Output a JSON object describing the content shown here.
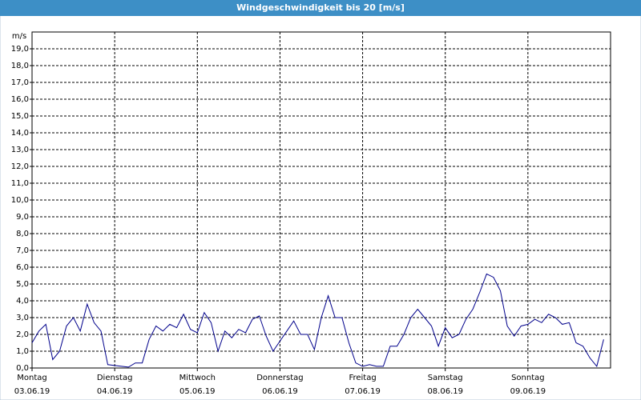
{
  "chart_data": {
    "type": "line",
    "title": "Windgeschwindigkeit bis 20 [m/s]",
    "y_label": "m/s",
    "x": [
      0,
      2,
      4,
      6,
      8,
      10,
      12,
      14,
      16,
      18,
      20,
      22,
      24,
      26,
      28,
      30,
      32,
      34,
      36,
      38,
      40,
      42,
      44,
      46,
      48,
      50,
      52,
      54,
      56,
      58,
      60,
      62,
      64,
      66,
      68,
      70,
      72,
      74,
      76,
      78,
      80,
      82,
      84,
      86,
      88,
      90,
      92,
      94,
      96,
      98,
      100,
      102,
      104,
      106,
      108,
      110,
      112,
      114,
      116,
      118,
      120,
      122,
      124,
      126,
      128,
      130,
      132,
      134,
      136,
      138,
      140,
      142,
      144,
      146,
      148,
      150,
      152,
      154,
      156,
      158,
      160,
      162,
      164,
      166
    ],
    "series": [
      {
        "name": "Windgeschwindigkeit",
        "color": "#00008b",
        "values": [
          1.5,
          2.2,
          2.6,
          0.5,
          1.0,
          2.5,
          3.0,
          2.2,
          3.8,
          2.7,
          2.2,
          0.2,
          0.15,
          0.1,
          0.05,
          0.3,
          0.3,
          1.7,
          2.5,
          2.2,
          2.6,
          2.4,
          3.2,
          2.3,
          2.1,
          3.3,
          2.7,
          1.0,
          2.2,
          1.8,
          2.3,
          2.1,
          2.9,
          3.1,
          1.9,
          1.0,
          1.6,
          2.2,
          2.8,
          2.0,
          2.0,
          1.1,
          3.0,
          4.3,
          3.0,
          3.0,
          1.5,
          0.3,
          0.1,
          0.2,
          0.1,
          0.1,
          1.3,
          1.3,
          2.0,
          3.0,
          3.5,
          3.0,
          2.5,
          1.3,
          2.4,
          1.8,
          2.0,
          2.9,
          3.5,
          4.5,
          5.6,
          5.4,
          4.6,
          2.5,
          1.9,
          2.5,
          2.6,
          2.9,
          2.7,
          3.2,
          3.0,
          2.6,
          2.7,
          1.5,
          1.3,
          0.6,
          0.1,
          1.7
        ]
      }
    ],
    "xlim": [
      0,
      168
    ],
    "xticks": [
      {
        "value": 0,
        "label": "Montag",
        "date": "03.06.19"
      },
      {
        "value": 24,
        "label": "Dienstag",
        "date": "04.06.19"
      },
      {
        "value": 48,
        "label": "Mittwoch",
        "date": "05.06.19"
      },
      {
        "value": 72,
        "label": "Donnerstag",
        "date": "06.06.19"
      },
      {
        "value": 96,
        "label": "Freitag",
        "date": "07.06.19"
      },
      {
        "value": 120,
        "label": "Samstag",
        "date": "08.06.19"
      },
      {
        "value": 144,
        "label": "Sonntag",
        "date": "09.06.19"
      }
    ],
    "ylim": [
      0,
      20
    ],
    "yticks": [
      {
        "value": 0,
        "label": "0,0"
      },
      {
        "value": 1,
        "label": "1,0"
      },
      {
        "value": 2,
        "label": "2,0"
      },
      {
        "value": 3,
        "label": "3,0"
      },
      {
        "value": 4,
        "label": "4,0"
      },
      {
        "value": 5,
        "label": "5,0"
      },
      {
        "value": 6,
        "label": "6,0"
      },
      {
        "value": 7,
        "label": "7,0"
      },
      {
        "value": 8,
        "label": "8,0"
      },
      {
        "value": 9,
        "label": "9,0"
      },
      {
        "value": 10,
        "label": "10,0"
      },
      {
        "value": 11,
        "label": "11,0"
      },
      {
        "value": 12,
        "label": "12,0"
      },
      {
        "value": 13,
        "label": "13,0"
      },
      {
        "value": 14,
        "label": "14,0"
      },
      {
        "value": 15,
        "label": "15,0"
      },
      {
        "value": 16,
        "label": "16,0"
      },
      {
        "value": 17,
        "label": "17,0"
      },
      {
        "value": 18,
        "label": "18,0"
      },
      {
        "value": 19,
        "label": "19,0"
      }
    ],
    "grid": true
  }
}
